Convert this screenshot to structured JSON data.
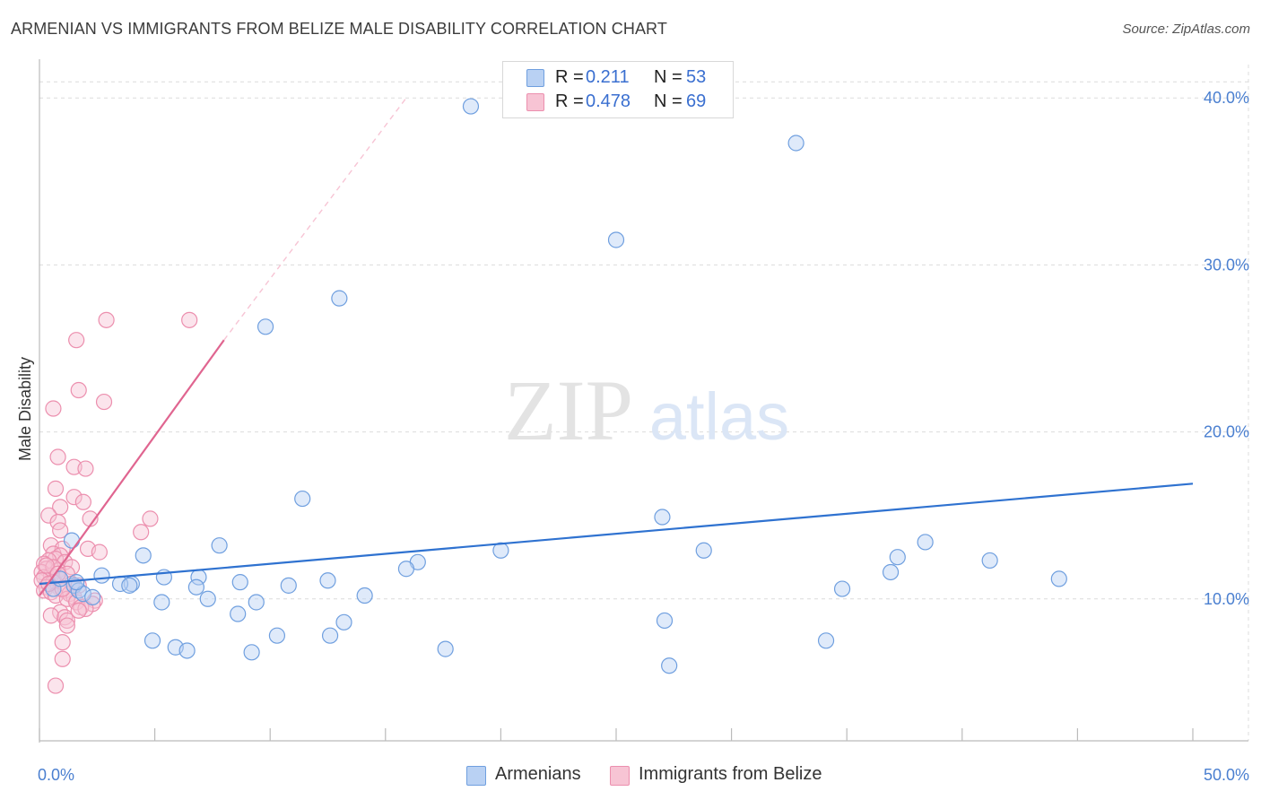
{
  "title": "ARMENIAN VS IMMIGRANTS FROM BELIZE MALE DISABILITY CORRELATION CHART",
  "source": "Source: ZipAtlas.com",
  "watermark": {
    "zip": "ZIP",
    "atlas": "atlas"
  },
  "legend": {
    "r_label": "R =",
    "n_label": "N =",
    "series1": {
      "r": "0.211",
      "n": "53"
    },
    "series2": {
      "r": "0.478",
      "n": "69"
    }
  },
  "bottom_legend": {
    "series1": "Armenians",
    "series2": "Immigrants from Belize"
  },
  "colors": {
    "blue": "#6f9fdf",
    "blue_fill": "#b9d1f3",
    "blue_line": "#2f72d0",
    "pink": "#ec8fae",
    "pink_fill": "#f7c4d4",
    "pink_line": "#e06590",
    "tick_label": "#4a7fd0"
  },
  "chart_data": {
    "type": "scatter",
    "title": "ARMENIAN VS IMMIGRANTS FROM BELIZE MALE DISABILITY CORRELATION CHART",
    "xlabel": "",
    "ylabel": "Male Disability",
    "xlim": [
      0,
      50
    ],
    "ylim": [
      1.5,
      42
    ],
    "x_tick_labels": [
      "0.0%",
      "50.0%"
    ],
    "x_tick_label_values": [
      0,
      50
    ],
    "x_tick_marks": [
      0,
      5,
      10,
      15,
      20,
      25,
      30,
      35,
      40,
      45,
      50
    ],
    "y_ticks": [
      10,
      20,
      30,
      40
    ],
    "y_tick_labels": [
      "10.0%",
      "20.0%",
      "30.0%",
      "40.0%"
    ],
    "grid": true,
    "series": [
      {
        "name": "Armenians",
        "r": 0.211,
        "n": 53,
        "trend": {
          "x": [
            0,
            50
          ],
          "y": [
            10.9,
            16.9
          ],
          "dashed_extension": false
        },
        "points": [
          [
            18.7,
            39.5
          ],
          [
            32.8,
            37.3
          ],
          [
            25.0,
            31.5
          ],
          [
            13.0,
            28.0
          ],
          [
            9.8,
            26.3
          ],
          [
            11.4,
            16.0
          ],
          [
            27.0,
            14.9
          ],
          [
            1.4,
            13.5
          ],
          [
            7.8,
            13.2
          ],
          [
            38.4,
            13.4
          ],
          [
            4.5,
            12.6
          ],
          [
            20.0,
            12.9
          ],
          [
            28.8,
            12.9
          ],
          [
            37.2,
            12.5
          ],
          [
            41.2,
            12.3
          ],
          [
            16.4,
            12.2
          ],
          [
            15.9,
            11.8
          ],
          [
            36.9,
            11.6
          ],
          [
            44.2,
            11.2
          ],
          [
            2.7,
            11.4
          ],
          [
            5.4,
            11.3
          ],
          [
            6.9,
            11.3
          ],
          [
            12.5,
            11.1
          ],
          [
            8.7,
            11.0
          ],
          [
            4.0,
            10.9
          ],
          [
            3.5,
            10.9
          ],
          [
            3.9,
            10.8
          ],
          [
            10.8,
            10.8
          ],
          [
            6.8,
            10.7
          ],
          [
            1.5,
            10.8
          ],
          [
            34.8,
            10.6
          ],
          [
            1.7,
            10.5
          ],
          [
            0.6,
            10.6
          ],
          [
            1.9,
            10.3
          ],
          [
            14.1,
            10.2
          ],
          [
            2.3,
            10.1
          ],
          [
            7.3,
            10.0
          ],
          [
            5.3,
            9.8
          ],
          [
            9.4,
            9.8
          ],
          [
            8.6,
            9.1
          ],
          [
            13.2,
            8.6
          ],
          [
            27.1,
            8.7
          ],
          [
            4.9,
            7.5
          ],
          [
            12.6,
            7.8
          ],
          [
            10.3,
            7.8
          ],
          [
            5.9,
            7.1
          ],
          [
            17.6,
            7.0
          ],
          [
            34.1,
            7.5
          ],
          [
            6.4,
            6.9
          ],
          [
            9.2,
            6.8
          ],
          [
            27.3,
            6.0
          ],
          [
            1.6,
            11.0
          ],
          [
            0.9,
            11.2
          ]
        ]
      },
      {
        "name": "Immigrants from Belize",
        "r": 0.478,
        "n": 69,
        "trend": {
          "x": [
            0,
            8.0
          ],
          "y": [
            10.2,
            25.5
          ],
          "dashed_to": [
            15.9,
            40.0
          ]
        },
        "points": [
          [
            2.9,
            26.7
          ],
          [
            6.5,
            26.7
          ],
          [
            1.6,
            25.5
          ],
          [
            1.7,
            22.5
          ],
          [
            2.8,
            21.8
          ],
          [
            0.6,
            21.4
          ],
          [
            0.8,
            18.5
          ],
          [
            1.5,
            17.9
          ],
          [
            2.0,
            17.8
          ],
          [
            0.7,
            16.6
          ],
          [
            1.5,
            16.1
          ],
          [
            1.9,
            15.8
          ],
          [
            0.9,
            15.5
          ],
          [
            0.4,
            15.0
          ],
          [
            2.2,
            14.8
          ],
          [
            4.8,
            14.8
          ],
          [
            0.8,
            14.6
          ],
          [
            0.9,
            14.1
          ],
          [
            4.4,
            14.0
          ],
          [
            0.5,
            13.2
          ],
          [
            1.0,
            13.0
          ],
          [
            2.1,
            13.0
          ],
          [
            2.6,
            12.8
          ],
          [
            0.6,
            12.7
          ],
          [
            0.9,
            12.6
          ],
          [
            0.7,
            12.4
          ],
          [
            0.4,
            12.3
          ],
          [
            0.2,
            12.1
          ],
          [
            1.1,
            12.2
          ],
          [
            1.4,
            11.9
          ],
          [
            0.3,
            11.8
          ],
          [
            0.8,
            11.7
          ],
          [
            0.1,
            11.6
          ],
          [
            1.2,
            11.5
          ],
          [
            0.5,
            11.4
          ],
          [
            0.2,
            11.3
          ],
          [
            0.9,
            11.2
          ],
          [
            0.1,
            11.1
          ],
          [
            0.6,
            11.0
          ],
          [
            1.4,
            10.9
          ],
          [
            1.7,
            10.8
          ],
          [
            0.3,
            10.7
          ],
          [
            0.9,
            10.6
          ],
          [
            1.1,
            10.5
          ],
          [
            0.2,
            10.5
          ],
          [
            0.5,
            10.4
          ],
          [
            1.3,
            10.3
          ],
          [
            0.7,
            10.2
          ],
          [
            1.5,
            10.1
          ],
          [
            1.2,
            10.0
          ],
          [
            0.4,
            10.9
          ],
          [
            2.4,
            9.9
          ],
          [
            1.6,
            9.8
          ],
          [
            2.3,
            9.7
          ],
          [
            1.8,
            9.5
          ],
          [
            2.0,
            9.4
          ],
          [
            1.7,
            9.3
          ],
          [
            0.9,
            9.2
          ],
          [
            0.5,
            9.0
          ],
          [
            1.1,
            8.9
          ],
          [
            1.2,
            8.7
          ],
          [
            1.2,
            8.4
          ],
          [
            1.0,
            7.4
          ],
          [
            1.0,
            6.4
          ],
          [
            0.7,
            4.8
          ],
          [
            0.6,
            11.9
          ],
          [
            0.3,
            12.0
          ],
          [
            0.8,
            11.5
          ],
          [
            1.0,
            10.6
          ]
        ]
      }
    ]
  }
}
